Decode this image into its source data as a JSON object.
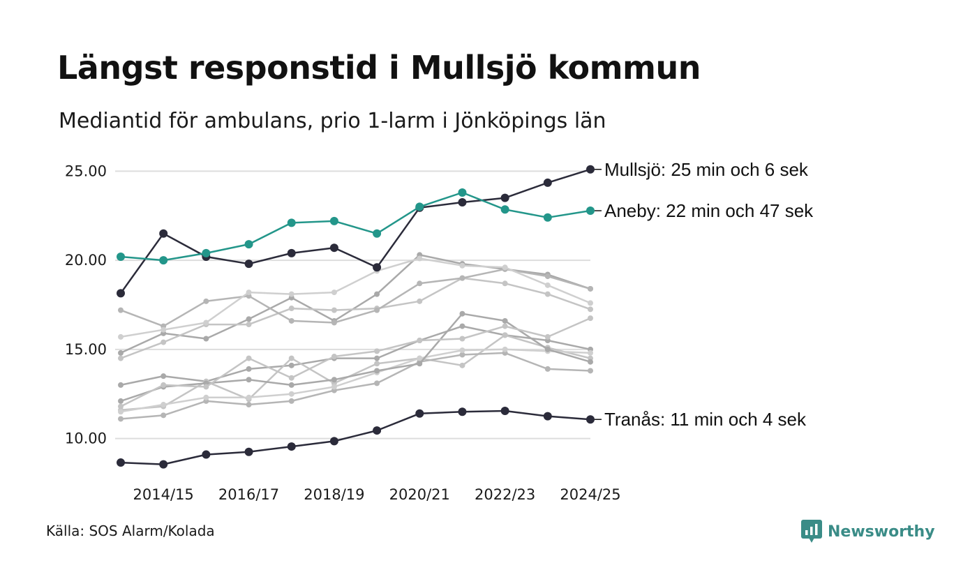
{
  "title": "Längst responstid i Mullsjö kommun",
  "subtitle": "Mediantid för ambulans, prio 1-larm i Jönköpings län",
  "source": "Källa: SOS Alarm/Kolada",
  "brand": {
    "name": "Newsworthy",
    "icon": "newsworthy-logo-icon",
    "color": "#3a8c87"
  },
  "colors": {
    "highlight_dark": "#2b2b3a",
    "highlight_teal": "#23968a",
    "background_series": [
      "#a9a9a9",
      "#c4c4c4",
      "#b5b5b5",
      "#cfcfcf"
    ],
    "grid": "#dddddd"
  },
  "chart_data": {
    "type": "line",
    "x": [
      "2013/14",
      "2014/15",
      "2015/16",
      "2016/17",
      "2017/18",
      "2018/19",
      "2019/20",
      "2020/21",
      "2021/22",
      "2022/23",
      "2023/24",
      "2024/25"
    ],
    "x_tick_labels": [
      "2014/15",
      "2016/17",
      "2018/19",
      "2020/21",
      "2022/23",
      "2024/25"
    ],
    "y_ticks": [
      "10.00",
      "15.00",
      "20.00",
      "25.00"
    ],
    "ylim": [
      8.3,
      25.6
    ],
    "grid": "horizontal",
    "legend": "none",
    "highlighted": [
      {
        "name": "Mullsjö",
        "label": "Mullsjö: 25 min och 6 sek",
        "color": "#2b2b3a",
        "values": [
          18.15,
          21.5,
          20.2,
          19.8,
          20.4,
          20.7,
          19.6,
          22.95,
          23.25,
          23.5,
          24.35,
          25.1
        ]
      },
      {
        "name": "Aneby",
        "label": "Aneby: 22 min och 47 sek",
        "color": "#23968a",
        "values": [
          20.2,
          20.0,
          20.4,
          20.9,
          22.1,
          22.2,
          21.5,
          23.0,
          23.8,
          22.85,
          22.4,
          22.78
        ]
      },
      {
        "name": "Tranås",
        "label": "Tranås: 11 min och 4 sek",
        "color": "#2b2b3a",
        "values": [
          8.65,
          8.55,
          9.1,
          9.25,
          9.55,
          9.85,
          10.45,
          11.4,
          11.5,
          11.55,
          11.25,
          11.07
        ]
      }
    ],
    "other_series": [
      {
        "values": [
          14.8,
          15.9,
          15.6,
          16.7,
          17.9,
          16.6,
          18.1,
          20.3,
          19.8,
          19.5,
          19.2,
          18.4
        ]
      },
      {
        "values": [
          14.5,
          15.4,
          16.4,
          16.4,
          17.3,
          17.2,
          17.3,
          17.7,
          19.0,
          18.7,
          18.1,
          17.25
        ]
      },
      {
        "values": [
          17.2,
          16.3,
          17.7,
          18.0,
          16.6,
          16.5,
          17.2,
          18.7,
          19.0,
          19.5,
          19.1,
          18.4
        ]
      },
      {
        "values": [
          15.7,
          16.1,
          16.5,
          18.2,
          18.1,
          18.2,
          19.4,
          20.1,
          19.7,
          19.6,
          18.6,
          17.6
        ]
      },
      {
        "values": [
          13.0,
          13.5,
          13.2,
          13.9,
          14.1,
          14.5,
          14.5,
          15.5,
          16.3,
          15.8,
          15.5,
          15.0
        ]
      },
      {
        "values": [
          11.6,
          11.8,
          13.2,
          12.2,
          14.5,
          13.1,
          14.2,
          14.5,
          14.1,
          15.8,
          15.1,
          14.5
        ]
      },
      {
        "values": [
          11.1,
          11.3,
          12.1,
          11.9,
          12.1,
          12.7,
          13.1,
          14.3,
          14.7,
          14.8,
          13.9,
          13.8
        ]
      },
      {
        "values": [
          11.5,
          11.9,
          12.3,
          12.3,
          12.5,
          12.9,
          13.7,
          14.5,
          14.95,
          15.0,
          14.9,
          14.8
        ]
      },
      {
        "values": [
          12.1,
          12.9,
          13.1,
          13.3,
          13.0,
          13.3,
          13.8,
          14.2,
          17.0,
          16.6,
          15.0,
          14.3
        ]
      },
      {
        "values": [
          11.8,
          13.0,
          12.9,
          14.5,
          13.4,
          14.6,
          14.9,
          15.5,
          15.6,
          16.3,
          15.7,
          16.75
        ]
      }
    ]
  }
}
